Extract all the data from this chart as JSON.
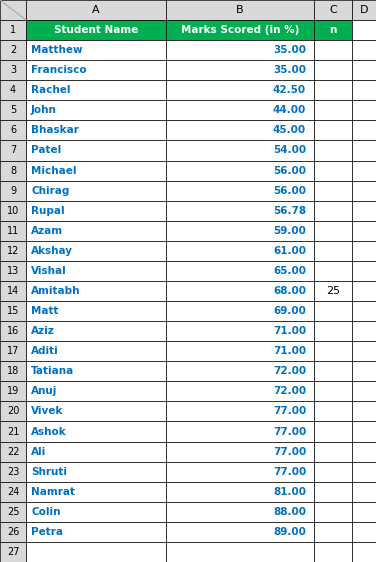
{
  "col_headers": [
    "",
    "A",
    "B",
    "C",
    "D"
  ],
  "row_numbers": [
    "",
    "1",
    "2",
    "3",
    "4",
    "5",
    "6",
    "7",
    "8",
    "9",
    "10",
    "11",
    "12",
    "13",
    "14",
    "15",
    "16",
    "17",
    "18",
    "19",
    "20",
    "21",
    "22",
    "23",
    "24",
    "25",
    "26",
    "27"
  ],
  "header_row": [
    "Student Name",
    "Marks Scored (in %)",
    "n"
  ],
  "students": [
    "Matthew",
    "Francisco",
    "Rachel",
    "John",
    "Bhaskar",
    "Patel",
    "Michael",
    "Chirag",
    "Rupal",
    "Azam",
    "Akshay",
    "Vishal",
    "Amitabh",
    "Matt",
    "Aziz",
    "Aditi",
    "Tatiana",
    "Anuj",
    "Vivek",
    "Ashok",
    "Ali",
    "Shruti",
    "Namrat",
    "Colin",
    "Petra"
  ],
  "marks": [
    "35.00",
    "35.00",
    "42.50",
    "44.00",
    "45.00",
    "54.00",
    "56.00",
    "56.00",
    "56.78",
    "59.00",
    "61.00",
    "65.00",
    "68.00",
    "69.00",
    "71.00",
    "71.00",
    "72.00",
    "72.00",
    "77.00",
    "77.00",
    "77.00",
    "77.00",
    "81.00",
    "88.00",
    "89.00"
  ],
  "n_value": "25",
  "n_student_idx": 12,
  "header_bg": "#00B050",
  "header_text_color": "#FFFFFF",
  "cell_bg": "#FFFFFF",
  "border_color": "#000000",
  "row_num_col_color": "#D9D9D9",
  "col_header_bg": "#D9D9D9",
  "data_text_color": "#0070C0",
  "fig_bg": "#FFFFFF"
}
